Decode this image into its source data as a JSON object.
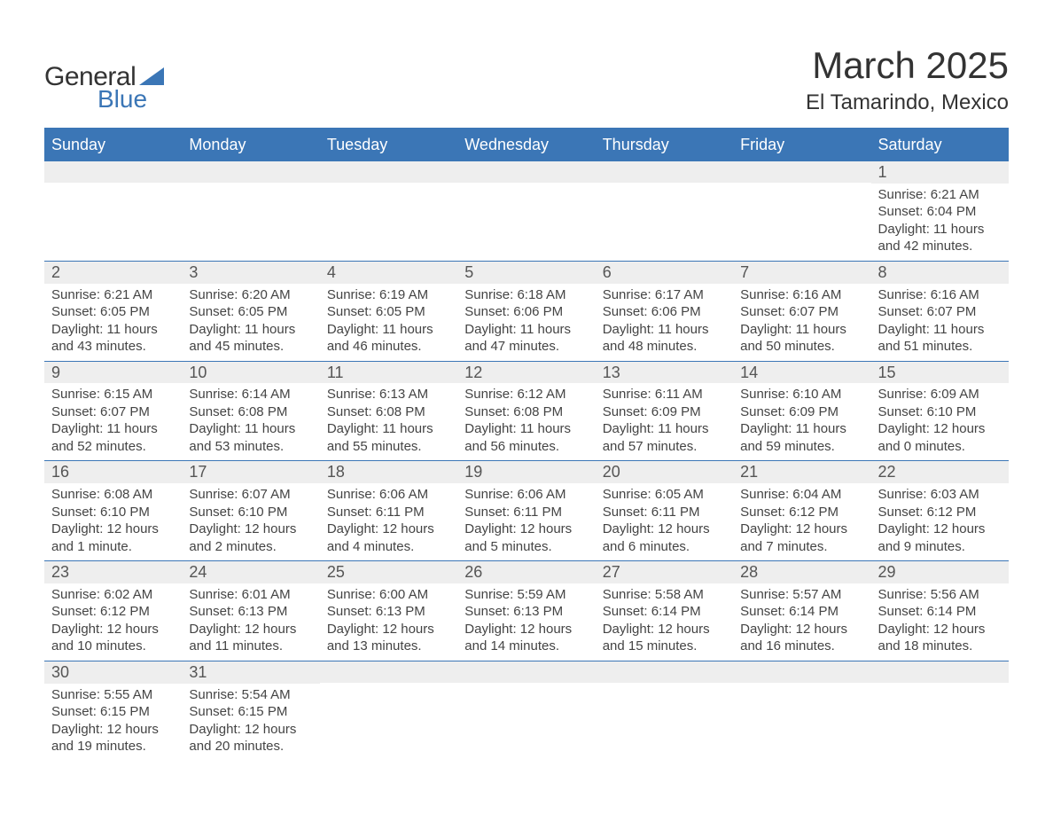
{
  "logo": {
    "text1": "General",
    "text2": "Blue",
    "triangle_color": "#3b76b6"
  },
  "title": "March 2025",
  "location": "El Tamarindo, Mexico",
  "header_bg": "#3b76b6",
  "daynum_bg": "#eeeeee",
  "weekdays": [
    "Sunday",
    "Monday",
    "Tuesday",
    "Wednesday",
    "Thursday",
    "Friday",
    "Saturday"
  ],
  "weeks": [
    [
      null,
      null,
      null,
      null,
      null,
      null,
      {
        "n": "1",
        "sr": "6:21 AM",
        "ss": "6:04 PM",
        "dl": "11 hours and 42 minutes."
      }
    ],
    [
      {
        "n": "2",
        "sr": "6:21 AM",
        "ss": "6:05 PM",
        "dl": "11 hours and 43 minutes."
      },
      {
        "n": "3",
        "sr": "6:20 AM",
        "ss": "6:05 PM",
        "dl": "11 hours and 45 minutes."
      },
      {
        "n": "4",
        "sr": "6:19 AM",
        "ss": "6:05 PM",
        "dl": "11 hours and 46 minutes."
      },
      {
        "n": "5",
        "sr": "6:18 AM",
        "ss": "6:06 PM",
        "dl": "11 hours and 47 minutes."
      },
      {
        "n": "6",
        "sr": "6:17 AM",
        "ss": "6:06 PM",
        "dl": "11 hours and 48 minutes."
      },
      {
        "n": "7",
        "sr": "6:16 AM",
        "ss": "6:07 PM",
        "dl": "11 hours and 50 minutes."
      },
      {
        "n": "8",
        "sr": "6:16 AM",
        "ss": "6:07 PM",
        "dl": "11 hours and 51 minutes."
      }
    ],
    [
      {
        "n": "9",
        "sr": "6:15 AM",
        "ss": "6:07 PM",
        "dl": "11 hours and 52 minutes."
      },
      {
        "n": "10",
        "sr": "6:14 AM",
        "ss": "6:08 PM",
        "dl": "11 hours and 53 minutes."
      },
      {
        "n": "11",
        "sr": "6:13 AM",
        "ss": "6:08 PM",
        "dl": "11 hours and 55 minutes."
      },
      {
        "n": "12",
        "sr": "6:12 AM",
        "ss": "6:08 PM",
        "dl": "11 hours and 56 minutes."
      },
      {
        "n": "13",
        "sr": "6:11 AM",
        "ss": "6:09 PM",
        "dl": "11 hours and 57 minutes."
      },
      {
        "n": "14",
        "sr": "6:10 AM",
        "ss": "6:09 PM",
        "dl": "11 hours and 59 minutes."
      },
      {
        "n": "15",
        "sr": "6:09 AM",
        "ss": "6:10 PM",
        "dl": "12 hours and 0 minutes."
      }
    ],
    [
      {
        "n": "16",
        "sr": "6:08 AM",
        "ss": "6:10 PM",
        "dl": "12 hours and 1 minute."
      },
      {
        "n": "17",
        "sr": "6:07 AM",
        "ss": "6:10 PM",
        "dl": "12 hours and 2 minutes."
      },
      {
        "n": "18",
        "sr": "6:06 AM",
        "ss": "6:11 PM",
        "dl": "12 hours and 4 minutes."
      },
      {
        "n": "19",
        "sr": "6:06 AM",
        "ss": "6:11 PM",
        "dl": "12 hours and 5 minutes."
      },
      {
        "n": "20",
        "sr": "6:05 AM",
        "ss": "6:11 PM",
        "dl": "12 hours and 6 minutes."
      },
      {
        "n": "21",
        "sr": "6:04 AM",
        "ss": "6:12 PM",
        "dl": "12 hours and 7 minutes."
      },
      {
        "n": "22",
        "sr": "6:03 AM",
        "ss": "6:12 PM",
        "dl": "12 hours and 9 minutes."
      }
    ],
    [
      {
        "n": "23",
        "sr": "6:02 AM",
        "ss": "6:12 PM",
        "dl": "12 hours and 10 minutes."
      },
      {
        "n": "24",
        "sr": "6:01 AM",
        "ss": "6:13 PM",
        "dl": "12 hours and 11 minutes."
      },
      {
        "n": "25",
        "sr": "6:00 AM",
        "ss": "6:13 PM",
        "dl": "12 hours and 13 minutes."
      },
      {
        "n": "26",
        "sr": "5:59 AM",
        "ss": "6:13 PM",
        "dl": "12 hours and 14 minutes."
      },
      {
        "n": "27",
        "sr": "5:58 AM",
        "ss": "6:14 PM",
        "dl": "12 hours and 15 minutes."
      },
      {
        "n": "28",
        "sr": "5:57 AM",
        "ss": "6:14 PM",
        "dl": "12 hours and 16 minutes."
      },
      {
        "n": "29",
        "sr": "5:56 AM",
        "ss": "6:14 PM",
        "dl": "12 hours and 18 minutes."
      }
    ],
    [
      {
        "n": "30",
        "sr": "5:55 AM",
        "ss": "6:15 PM",
        "dl": "12 hours and 19 minutes."
      },
      {
        "n": "31",
        "sr": "5:54 AM",
        "ss": "6:15 PM",
        "dl": "12 hours and 20 minutes."
      },
      null,
      null,
      null,
      null,
      null
    ]
  ],
  "labels": {
    "sunrise": "Sunrise: ",
    "sunset": "Sunset: ",
    "daylight": "Daylight: "
  }
}
